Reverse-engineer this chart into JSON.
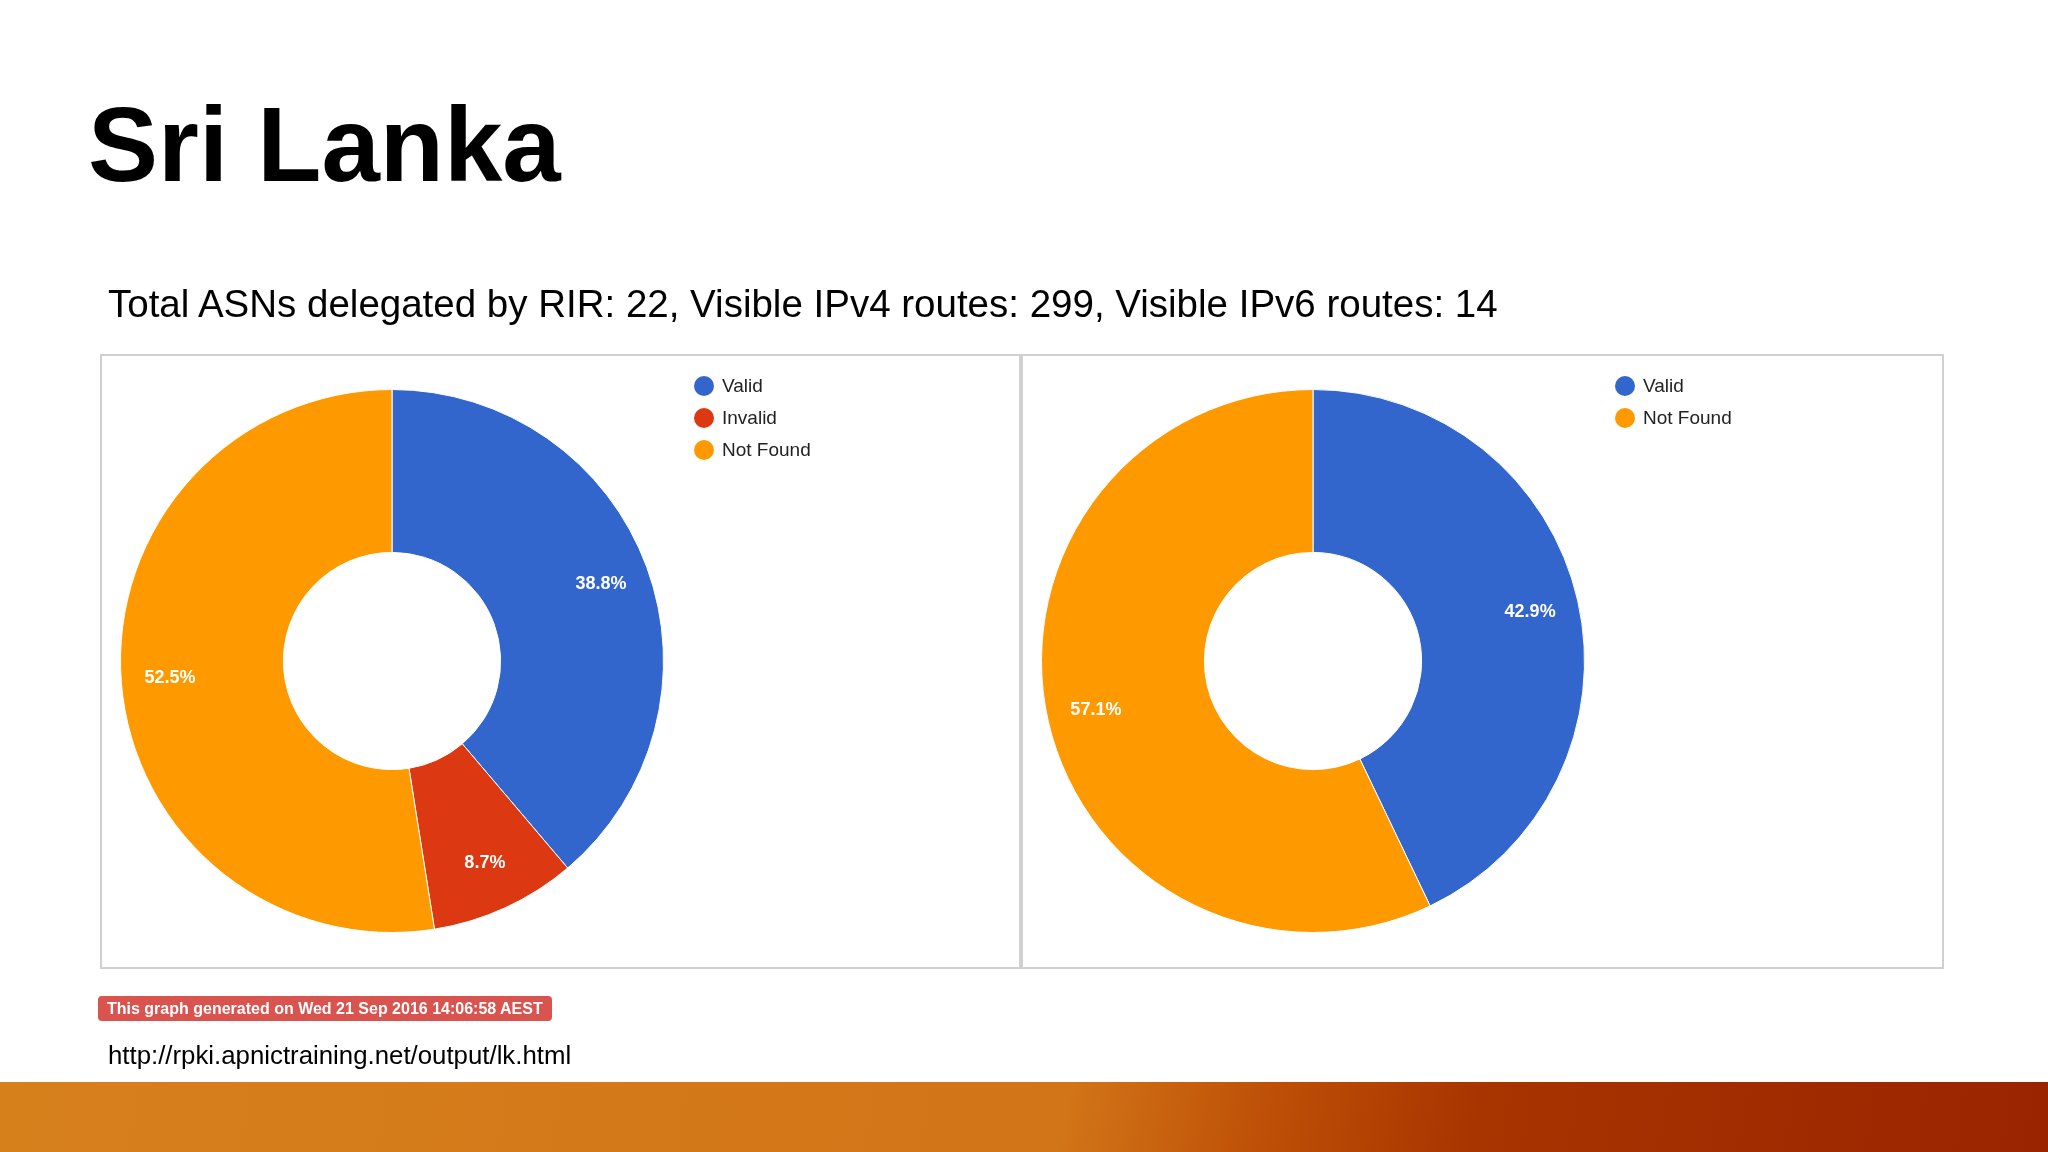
{
  "chart_data": [
    {
      "type": "donut",
      "title": "Sri Lanka",
      "subtitle": "Total ASNs delegated by RIR: 22, Visible IPv4 routes: 299, Visible IPv6 routes: 14",
      "categories": [
        "Valid",
        "Invalid",
        "Not Found"
      ],
      "values": [
        38.8,
        8.7,
        52.5
      ],
      "colors": [
        "#3366cc",
        "#dc3912",
        "#ff9900"
      ],
      "value_labels": [
        "38.8%",
        "8.7%",
        "52.5%"
      ],
      "legend": "top right",
      "annotations": [
        "This graph generated on Wed 21 Sep 2016 14:06:58 AEST",
        "http://rpki.apnictraining.net/output/lk.html"
      ]
    },
    {
      "type": "donut",
      "categories": [
        "Valid",
        "Not Found"
      ],
      "values": [
        42.9,
        57.1
      ],
      "colors": [
        "#3366cc",
        "#ff9900"
      ],
      "value_labels": [
        "42.9%",
        "57.1%"
      ],
      "legend": "top right"
    }
  ]
}
